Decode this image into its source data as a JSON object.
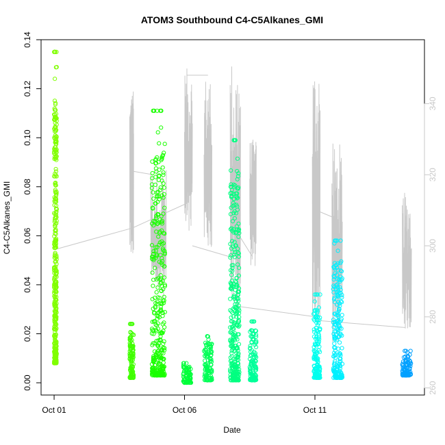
{
  "chart_data": {
    "type": "scatter",
    "title": "ATOM3 Southbound C4-C5Alkanes_GMI",
    "xlabel": "Date",
    "ylabel": "C4-C5Alkanes_GMI",
    "x_ticks": [
      "Oct 01",
      "Oct 06",
      "Oct 11"
    ],
    "x_ticks_day": [
      1,
      6,
      11
    ],
    "xlim_day": [
      0.5,
      15.2
    ],
    "ylim": [
      -0.005,
      0.14
    ],
    "y_ticks": [
      "0.00",
      "0.02",
      "0.04",
      "0.06",
      "0.08",
      "0.10",
      "0.12",
      "0.14"
    ],
    "y_tick_values": [
      0,
      0.02,
      0.04,
      0.06,
      0.08,
      0.1,
      0.12,
      0.14
    ],
    "y2lim": [
      258,
      358
    ],
    "y2_ticks": [
      "260",
      "280",
      "300",
      "320",
      "340"
    ],
    "y2_tick_values": [
      260,
      280,
      300,
      320,
      340
    ],
    "series": [
      {
        "role": "C4-C5Alkanes_GMI (scatter, color by flight)",
        "flights": [
          {
            "color": "#80ff00",
            "day_start": 1.0,
            "day_end": 1.1,
            "min": 0.008,
            "max": 0.135
          },
          {
            "color": "#40ff00",
            "day_start": 3.9,
            "day_end": 4.05,
            "min": 0.002,
            "max": 0.024
          },
          {
            "color": "#1aff00",
            "day_start": 4.75,
            "day_end": 5.25,
            "min": 0.003,
            "max": 0.111
          },
          {
            "color": "#00ff3a",
            "day_start": 5.95,
            "day_end": 6.25,
            "min": 0.0,
            "max": 0.008
          },
          {
            "color": "#00ff55",
            "day_start": 6.75,
            "day_end": 7.05,
            "min": 0.001,
            "max": 0.019
          },
          {
            "color": "#00ff80",
            "day_start": 7.75,
            "day_end": 8.1,
            "min": 0.001,
            "max": 0.099
          },
          {
            "color": "#00ff99",
            "day_start": 8.5,
            "day_end": 8.75,
            "min": 0.001,
            "max": 0.025
          },
          {
            "color": "#00ffee",
            "day_start": 10.95,
            "day_end": 11.2,
            "min": 0.002,
            "max": 0.036
          },
          {
            "color": "#00f0ff",
            "day_start": 11.7,
            "day_end": 12.05,
            "min": 0.002,
            "max": 0.058
          },
          {
            "color": "#00a0ff",
            "day_start": 14.35,
            "day_end": 14.7,
            "min": 0.003,
            "max": 0.013
          }
        ]
      },
      {
        "role": "secondary (grey line, right axis)",
        "color": "#c8c8c8",
        "segments": [
          {
            "day_start": 3.9,
            "day_end": 4.05,
            "min": 295,
            "max": 344
          },
          {
            "day_start": 4.7,
            "day_end": 5.3,
            "min": 285,
            "max": 322
          },
          {
            "day_start": 6.0,
            "day_end": 6.3,
            "min": 300,
            "max": 350
          },
          {
            "day_start": 6.75,
            "day_end": 7.05,
            "min": 298,
            "max": 348
          },
          {
            "day_start": 7.75,
            "day_end": 8.15,
            "min": 278,
            "max": 353
          },
          {
            "day_start": 8.5,
            "day_end": 8.75,
            "min": 294,
            "max": 330
          },
          {
            "day_start": 10.9,
            "day_end": 11.2,
            "min": 277,
            "max": 352
          },
          {
            "day_start": 11.65,
            "day_end": 12.05,
            "min": 272,
            "max": 329
          },
          {
            "day_start": 14.35,
            "day_end": 14.7,
            "min": 276,
            "max": 315
          }
        ],
        "connectors": [
          [
            1.05,
            299,
            4.0,
            305
          ],
          [
            4.0,
            321,
            4.8,
            320
          ],
          [
            4.0,
            305,
            6.1,
            312
          ],
          [
            6.1,
            348,
            6.9,
            348
          ],
          [
            6.3,
            300,
            7.7,
            297
          ],
          [
            8.0,
            283,
            11.05,
            280
          ],
          [
            8.0,
            304,
            8.6,
            297
          ],
          [
            11.05,
            310,
            11.7,
            308
          ],
          [
            11.05,
            279,
            14.45,
            277
          ]
        ]
      }
    ]
  }
}
